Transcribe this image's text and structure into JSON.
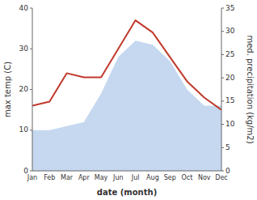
{
  "chart_data": {
    "type": "line",
    "categories": [
      "Jan",
      "Feb",
      "Mar",
      "Apr",
      "May",
      "Jun",
      "Jul",
      "Aug",
      "Sep",
      "Oct",
      "Nov",
      "Dec"
    ],
    "series": [
      {
        "type": "area",
        "color": "#c5d8f0",
        "values": [
          10,
          10,
          11,
          12,
          19,
          28,
          32,
          31,
          27,
          20,
          16,
          16
        ]
      },
      {
        "type": "line",
        "color": "#c0392b",
        "values": [
          16,
          17,
          24,
          23,
          23,
          30,
          37,
          34,
          28,
          22,
          18,
          15
        ]
      }
    ],
    "xlabel": "date (month)",
    "ylabel": "max temp (C)",
    "y2label": "med. precipitation (kg/m2)",
    "ylim": [
      0,
      40
    ],
    "yticks": [
      0,
      10,
      20,
      30,
      40
    ],
    "y2lim": [
      0,
      35
    ],
    "y2ticks": [
      0,
      5,
      10,
      15,
      20,
      25,
      30,
      35
    ],
    "grid": false
  }
}
